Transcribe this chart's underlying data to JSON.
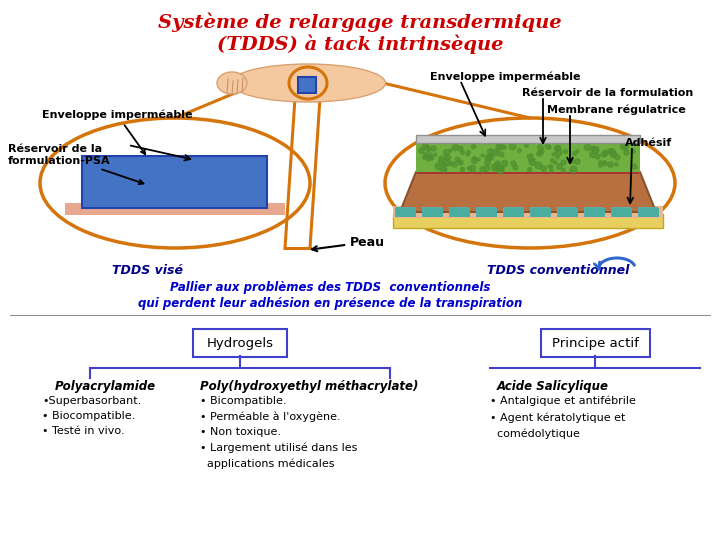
{
  "bg_color": "#ffffff",
  "title_line1": "Système de relargage transdermique",
  "title_line2": "(TDDS) à tack intrinsèque",
  "title_color": "#cc0000",
  "label_enveloppe_left": "Enveloppe imperméable",
  "label_reservoir_left": "Réservoir de la\nformulation-PSA",
  "label_enveloppe_right": "Enveloppe imperméable",
  "label_reservoir_right": "Réservoir de la formulation",
  "label_membrane": "Membrane régulatrice",
  "label_adhesif": "Adhésif",
  "label_peau": "Peau",
  "label_tdds_vise": "TDDS visé",
  "label_tdds_conv": "TDDS conventionnel",
  "pallier_line1": "Pallier aux problèmes des TDDS  conventionnels",
  "pallier_line2": "qui perdent leur adhésion en présence de la transpiration",
  "pallier_color": "#0000cc",
  "box_hydrogels": "Hydrogels",
  "box_principe": "Principe actif",
  "poly1_title": "Polyacrylamide",
  "poly1_items": "•Superbasorbant.\n• Biocompatible.\n• Testé in vivo.",
  "poly2_title": "Poly(hydroxyethyl méthacrylate)",
  "poly2_items": "• Bicompatible.\n• Perméable à l'oxygène.\n• Non toxique.\n• Largement utilisé dans les\n  applications médicales",
  "principe_title": "Acide Salicylique",
  "principe_items": "• Antalgique et antifébrile\n• Agent kératolytique et\n  comédolytique",
  "orange_color": "#d4740a",
  "black": "#000000",
  "blue": "#00008b"
}
